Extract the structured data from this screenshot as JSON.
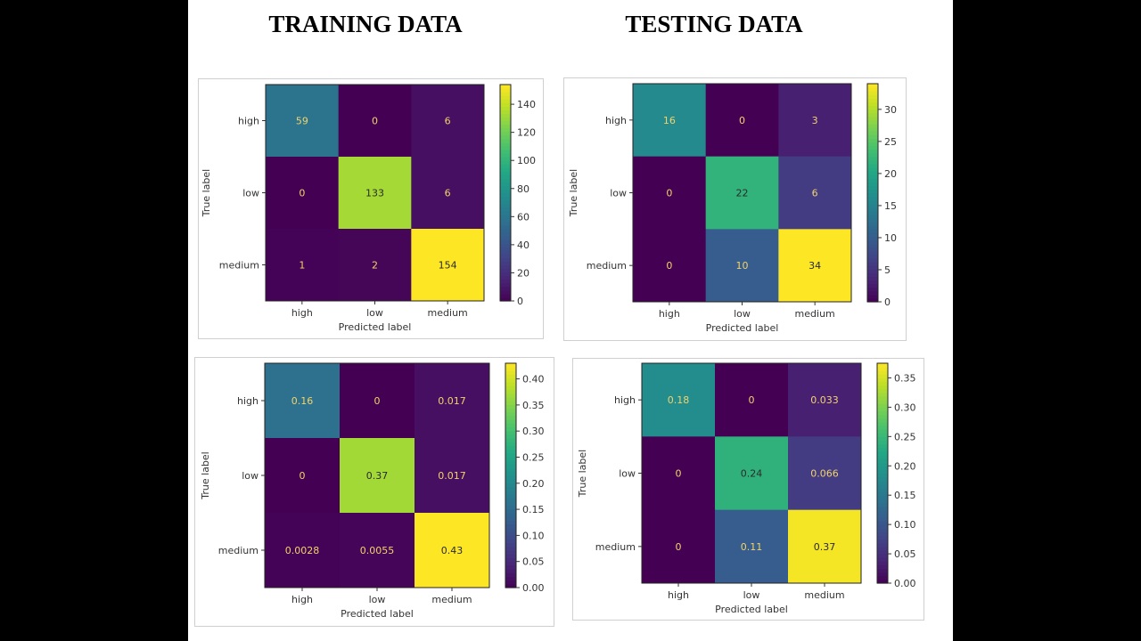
{
  "slide": {
    "titles": {
      "training": "TRAINING DATA",
      "testing": "TESTING DATA"
    }
  },
  "chart_data": [
    {
      "type": "heatmap",
      "group": "training",
      "colormap": "viridis",
      "xlabel": "Predicted label",
      "ylabel": "True label",
      "x_categories": [
        "high",
        "low",
        "medium"
      ],
      "y_categories": [
        "high",
        "low",
        "medium"
      ],
      "values": [
        [
          59,
          0,
          6
        ],
        [
          0,
          133,
          6
        ],
        [
          1,
          2,
          154
        ]
      ],
      "labels": [
        [
          "59",
          "0",
          "6"
        ],
        [
          "0",
          "133",
          "6"
        ],
        [
          "1",
          "2",
          "154"
        ]
      ],
      "colorbar": {
        "range": [
          0,
          154
        ],
        "ticks": [
          0,
          20,
          40,
          60,
          80,
          100,
          120,
          140
        ],
        "tick_labels": [
          "0",
          "20",
          "40",
          "60",
          "80",
          "100",
          "120",
          "140"
        ]
      }
    },
    {
      "type": "heatmap",
      "group": "testing",
      "colormap": "viridis",
      "xlabel": "Predicted label",
      "ylabel": "True label",
      "x_categories": [
        "high",
        "low",
        "medium"
      ],
      "y_categories": [
        "high",
        "low",
        "medium"
      ],
      "values": [
        [
          16,
          0,
          3
        ],
        [
          0,
          22,
          6
        ],
        [
          0,
          10,
          34
        ]
      ],
      "labels": [
        [
          "16",
          "0",
          "3"
        ],
        [
          "0",
          "22",
          "6"
        ],
        [
          "0",
          "10",
          "34"
        ]
      ],
      "colorbar": {
        "range": [
          0,
          34
        ],
        "ticks": [
          0,
          5,
          10,
          15,
          20,
          25,
          30
        ],
        "tick_labels": [
          "0",
          "5",
          "10",
          "15",
          "20",
          "25",
          "30"
        ]
      }
    },
    {
      "type": "heatmap",
      "group": "training",
      "colormap": "viridis",
      "xlabel": "Predicted label",
      "ylabel": "True label",
      "x_categories": [
        "high",
        "low",
        "medium"
      ],
      "y_categories": [
        "high",
        "low",
        "medium"
      ],
      "values": [
        [
          0.16,
          0,
          0.017
        ],
        [
          0,
          0.37,
          0.017
        ],
        [
          0.0028,
          0.0055,
          0.43
        ]
      ],
      "labels": [
        [
          "0.16",
          "0",
          "0.017"
        ],
        [
          "0",
          "0.37",
          "0.017"
        ],
        [
          "0.0028",
          "0.0055",
          "0.43"
        ]
      ],
      "colorbar": {
        "range": [
          0,
          0.43
        ],
        "ticks": [
          0,
          0.05,
          0.1,
          0.15,
          0.2,
          0.25,
          0.3,
          0.35,
          0.4
        ],
        "tick_labels": [
          "0.00",
          "0.05",
          "0.10",
          "0.15",
          "0.20",
          "0.25",
          "0.30",
          "0.35",
          "0.40"
        ]
      }
    },
    {
      "type": "heatmap",
      "group": "testing",
      "colormap": "viridis",
      "xlabel": "Predicted label",
      "ylabel": "True label",
      "x_categories": [
        "high",
        "low",
        "medium"
      ],
      "y_categories": [
        "high",
        "low",
        "medium"
      ],
      "values": [
        [
          0.18,
          0,
          0.033
        ],
        [
          0,
          0.24,
          0.066
        ],
        [
          0,
          0.11,
          0.37
        ]
      ],
      "labels": [
        [
          "0.18",
          "0",
          "0.033"
        ],
        [
          "0",
          "0.24",
          "0.066"
        ],
        [
          "0",
          "0.11",
          "0.37"
        ]
      ],
      "colorbar": {
        "range": [
          0,
          0.375
        ],
        "ticks": [
          0,
          0.05,
          0.1,
          0.15,
          0.2,
          0.25,
          0.3,
          0.35
        ],
        "tick_labels": [
          "0.00",
          "0.05",
          "0.10",
          "0.15",
          "0.20",
          "0.25",
          "0.30",
          "0.35"
        ]
      }
    }
  ]
}
